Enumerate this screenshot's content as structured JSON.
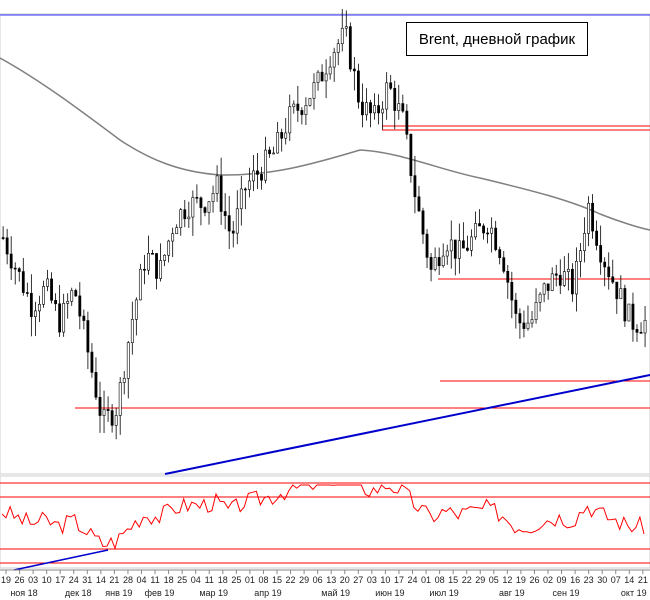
{
  "chart_data": {
    "type": "candlestick",
    "title": "Brent, дневной график",
    "instrument": "Brent",
    "timeframe": "daily",
    "x_ticks": [
      "19",
      "26",
      "03",
      "10",
      "17",
      "24",
      "31",
      "14",
      "21",
      "28",
      "04",
      "11",
      "18",
      "25",
      "04",
      "11",
      "18",
      "25",
      "01",
      "08",
      "15",
      "22",
      "29",
      "06",
      "13",
      "20",
      "27",
      "03",
      "10",
      "17",
      "24",
      "01",
      "08",
      "15",
      "22",
      "29",
      "05",
      "12",
      "19",
      "26",
      "02",
      "09",
      "16",
      "23",
      "30",
      "07",
      "14",
      "21"
    ],
    "months": [
      {
        "label": "ноя 18",
        "tick": 0
      },
      {
        "label": "дек 18",
        "tick": 4
      },
      {
        "label": "янв 19",
        "tick": 7
      },
      {
        "label": "фев 19",
        "tick": 10
      },
      {
        "label": "мар 19",
        "tick": 14
      },
      {
        "label": "апр 19",
        "tick": 18
      },
      {
        "label": "май 19",
        "tick": 23
      },
      {
        "label": "июн 19",
        "tick": 27
      },
      {
        "label": "июл 19",
        "tick": 31
      },
      {
        "label": "авг 19",
        "tick": 36
      },
      {
        "label": "сен 19",
        "tick": 40
      },
      {
        "label": "окт 19",
        "tick": 45
      }
    ],
    "price_series_approx": [
      63,
      61,
      59,
      60,
      58,
      60,
      56,
      52,
      53,
      58,
      62,
      61,
      64,
      65,
      65,
      66,
      63,
      66,
      67,
      68,
      70,
      71,
      72,
      74,
      75,
      71,
      70,
      72,
      70,
      65,
      61,
      63,
      62,
      63,
      64,
      62,
      58,
      58,
      60,
      61,
      60,
      65,
      62,
      60,
      58,
      58
    ],
    "moving_average": "long-period moving average (gray line)",
    "oscillator": {
      "type": "line",
      "color": "red"
    },
    "support_resistance_lines": "horizontal red lines",
    "trendline_color": "#0000cc",
    "colors": {
      "candles": "#000000",
      "levels": "#ff0000",
      "trend": "#0000cc",
      "ma": "#808080"
    }
  }
}
